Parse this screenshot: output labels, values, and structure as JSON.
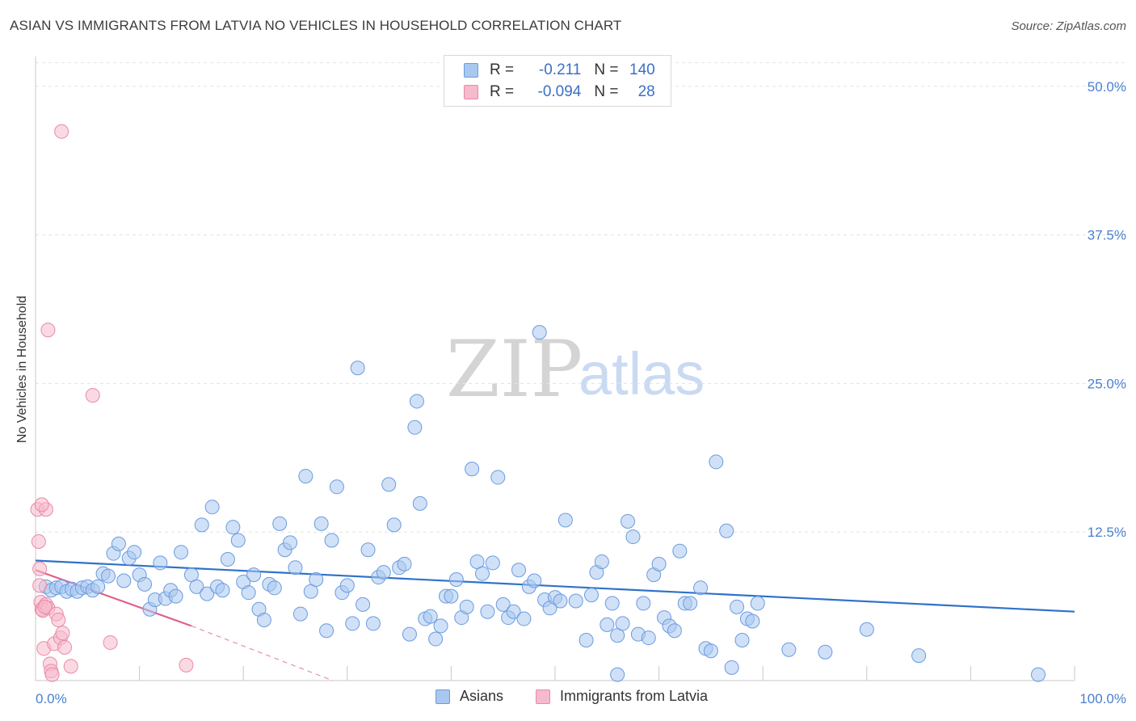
{
  "title": "ASIAN VS IMMIGRANTS FROM LATVIA NO VEHICLES IN HOUSEHOLD CORRELATION CHART",
  "source": "Source: ZipAtlas.com",
  "watermark": {
    "zip": "ZIP",
    "atlas": "atlas"
  },
  "legend": {
    "rows": [
      {
        "r_label": "R = ",
        "r_value": "-0.211",
        "n_label": "N = ",
        "n_value": "140",
        "color": "#a9c8f0",
        "border": "#6a9be0"
      },
      {
        "r_label": "R = ",
        "r_value": "-0.094",
        "n_label": "N = ",
        "n_value": "28",
        "color": "#f7b9cc",
        "border": "#e88aa6"
      }
    ]
  },
  "bottom_legend": [
    {
      "label": "Asians",
      "color": "#a9c8f0",
      "border": "#6a9be0"
    },
    {
      "label": "Immigrants from Latvia",
      "color": "#f7b9cc",
      "border": "#e88aa6"
    }
  ],
  "chart_data": {
    "type": "scatter",
    "title": "ASIAN VS IMMIGRANTS FROM LATVIA NO VEHICLES IN HOUSEHOLD CORRELATION CHART",
    "xlabel": "",
    "ylabel": "No Vehicles in Household",
    "xlim": [
      0,
      100
    ],
    "ylim": [
      0,
      52.5
    ],
    "x_tick_labels": [
      "0.0%",
      "100.0%"
    ],
    "y_ticks": [
      12.5,
      25.0,
      37.5,
      50.0
    ],
    "y_tick_labels": [
      "12.5%",
      "25.0%",
      "37.5%",
      "50.0%"
    ],
    "grid": true,
    "series": [
      {
        "name": "Asians",
        "color": "#a9c8f0",
        "stroke": "#6a9be0",
        "trend": {
          "x": [
            0,
            100
          ],
          "y": [
            10.1,
            5.8
          ],
          "color": "#2f72c9"
        },
        "points": [
          [
            1.0,
            7.9
          ],
          [
            1.5,
            7.6
          ],
          [
            2.0,
            7.8
          ],
          [
            2.5,
            7.9
          ],
          [
            3.0,
            7.5
          ],
          [
            3.5,
            7.7
          ],
          [
            4.0,
            7.5
          ],
          [
            4.5,
            7.8
          ],
          [
            5.0,
            7.9
          ],
          [
            5.5,
            7.6
          ],
          [
            6.0,
            7.9
          ],
          [
            6.5,
            9.0
          ],
          [
            7.0,
            8.8
          ],
          [
            7.5,
            10.7
          ],
          [
            8.0,
            11.5
          ],
          [
            8.5,
            8.4
          ],
          [
            9.0,
            10.3
          ],
          [
            9.5,
            10.8
          ],
          [
            10.0,
            8.9
          ],
          [
            10.5,
            8.1
          ],
          [
            11.0,
            6.0
          ],
          [
            11.5,
            6.8
          ],
          [
            12.0,
            9.9
          ],
          [
            12.5,
            6.9
          ],
          [
            13.0,
            7.6
          ],
          [
            13.5,
            7.1
          ],
          [
            14.0,
            10.8
          ],
          [
            15.0,
            8.9
          ],
          [
            15.5,
            7.9
          ],
          [
            16.0,
            13.1
          ],
          [
            16.5,
            7.3
          ],
          [
            17.0,
            14.6
          ],
          [
            17.5,
            7.9
          ],
          [
            18.0,
            7.6
          ],
          [
            18.5,
            10.2
          ],
          [
            19.0,
            12.9
          ],
          [
            19.5,
            11.8
          ],
          [
            20.0,
            8.3
          ],
          [
            20.5,
            7.4
          ],
          [
            21.0,
            8.9
          ],
          [
            21.5,
            6.0
          ],
          [
            22.0,
            5.1
          ],
          [
            22.5,
            8.1
          ],
          [
            23.0,
            7.8
          ],
          [
            23.5,
            13.2
          ],
          [
            24.0,
            11.0
          ],
          [
            24.5,
            11.6
          ],
          [
            25.0,
            9.5
          ],
          [
            25.5,
            5.6
          ],
          [
            26.0,
            17.2
          ],
          [
            26.5,
            7.5
          ],
          [
            27.0,
            8.5
          ],
          [
            27.5,
            13.2
          ],
          [
            28.0,
            4.2
          ],
          [
            28.5,
            11.8
          ],
          [
            29.0,
            16.3
          ],
          [
            29.5,
            7.4
          ],
          [
            30.0,
            8.0
          ],
          [
            30.5,
            4.8
          ],
          [
            31.0,
            26.3
          ],
          [
            31.5,
            6.4
          ],
          [
            32.0,
            11.0
          ],
          [
            32.5,
            4.8
          ],
          [
            33.0,
            8.7
          ],
          [
            33.5,
            9.1
          ],
          [
            34.0,
            16.5
          ],
          [
            34.5,
            13.1
          ],
          [
            35.0,
            9.5
          ],
          [
            35.5,
            9.8
          ],
          [
            36.0,
            3.9
          ],
          [
            36.5,
            21.3
          ],
          [
            36.7,
            23.5
          ],
          [
            37.0,
            14.9
          ],
          [
            37.5,
            5.2
          ],
          [
            38.0,
            5.4
          ],
          [
            38.5,
            3.5
          ],
          [
            39.0,
            4.6
          ],
          [
            39.5,
            7.1
          ],
          [
            40.0,
            7.1
          ],
          [
            40.5,
            8.5
          ],
          [
            41.0,
            5.3
          ],
          [
            41.5,
            6.2
          ],
          [
            42.0,
            17.8
          ],
          [
            42.5,
            10.0
          ],
          [
            43.0,
            9.0
          ],
          [
            43.5,
            5.8
          ],
          [
            44.0,
            9.9
          ],
          [
            44.5,
            17.1
          ],
          [
            45.0,
            6.4
          ],
          [
            45.5,
            5.3
          ],
          [
            46.0,
            5.8
          ],
          [
            46.5,
            9.3
          ],
          [
            47.0,
            5.2
          ],
          [
            47.5,
            7.9
          ],
          [
            48.0,
            8.4
          ],
          [
            48.5,
            29.3
          ],
          [
            49.0,
            6.8
          ],
          [
            49.5,
            6.1
          ],
          [
            50.0,
            7.0
          ],
          [
            50.5,
            6.7
          ],
          [
            51.0,
            13.5
          ],
          [
            52.0,
            6.7
          ],
          [
            53.0,
            3.4
          ],
          [
            53.5,
            7.2
          ],
          [
            54.0,
            9.1
          ],
          [
            54.5,
            10.0
          ],
          [
            55.0,
            4.7
          ],
          [
            55.5,
            6.5
          ],
          [
            56.0,
            3.8
          ],
          [
            56.5,
            4.8
          ],
          [
            57.0,
            13.4
          ],
          [
            57.5,
            12.1
          ],
          [
            58.0,
            3.9
          ],
          [
            58.5,
            6.5
          ],
          [
            59.0,
            3.6
          ],
          [
            59.5,
            8.9
          ],
          [
            60.0,
            9.8
          ],
          [
            60.5,
            5.3
          ],
          [
            61.0,
            4.6
          ],
          [
            61.5,
            4.2
          ],
          [
            62.0,
            10.9
          ],
          [
            62.5,
            6.5
          ],
          [
            63.0,
            6.5
          ],
          [
            64.0,
            7.8
          ],
          [
            64.5,
            2.7
          ],
          [
            65.0,
            2.5
          ],
          [
            65.5,
            18.4
          ],
          [
            66.5,
            12.6
          ],
          [
            67.0,
            1.1
          ],
          [
            67.5,
            6.2
          ],
          [
            68.0,
            3.4
          ],
          [
            68.5,
            5.2
          ],
          [
            69.0,
            5.0
          ],
          [
            69.5,
            6.5
          ],
          [
            72.5,
            2.6
          ],
          [
            76.0,
            2.4
          ],
          [
            80.0,
            4.3
          ],
          [
            85.0,
            2.1
          ],
          [
            96.5,
            0.5
          ],
          [
            56.0,
            0.5
          ]
        ]
      },
      {
        "name": "Immigrants from Latvia",
        "color": "#f7b9cc",
        "stroke": "#e88aa6",
        "trend": {
          "x": [
            0,
            15
          ],
          "y": [
            9.3,
            4.6
          ],
          "color": "#e0608b",
          "dashed_to": [
            28.6,
            0
          ]
        },
        "points": [
          [
            0.2,
            14.4
          ],
          [
            0.3,
            11.7
          ],
          [
            0.4,
            9.4
          ],
          [
            0.4,
            8.0
          ],
          [
            0.5,
            6.6
          ],
          [
            0.6,
            6.0
          ],
          [
            0.7,
            5.9
          ],
          [
            0.8,
            2.7
          ],
          [
            1.0,
            6.4
          ],
          [
            1.2,
            6.1
          ],
          [
            1.4,
            1.4
          ],
          [
            1.5,
            0.8
          ],
          [
            1.6,
            0.5
          ],
          [
            1.8,
            3.1
          ],
          [
            2.0,
            5.6
          ],
          [
            2.2,
            5.1
          ],
          [
            2.4,
            3.6
          ],
          [
            2.6,
            4.0
          ],
          [
            2.8,
            2.8
          ],
          [
            1.0,
            14.4
          ],
          [
            2.5,
            46.2
          ],
          [
            1.2,
            29.5
          ],
          [
            5.5,
            24.0
          ],
          [
            7.2,
            3.2
          ],
          [
            3.4,
            1.2
          ],
          [
            14.5,
            1.3
          ],
          [
            0.9,
            6.2
          ],
          [
            0.6,
            14.8
          ]
        ]
      }
    ]
  }
}
